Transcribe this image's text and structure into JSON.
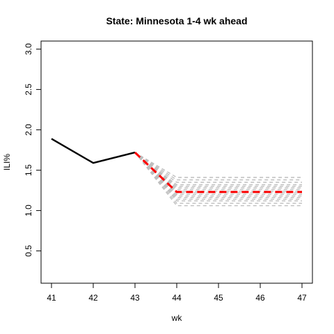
{
  "chart_data": {
    "type": "line",
    "title": "State: Minnesota 1-4 wk ahead",
    "xlabel": "wk",
    "ylabel": "ILI%",
    "xlim": [
      40.75,
      47.25
    ],
    "ylim": [
      0.1,
      3.1
    ],
    "xticks": [
      "41",
      "42",
      "43",
      "44",
      "45",
      "46",
      "47"
    ],
    "yticks": [
      "0.5",
      "1.0",
      "1.5",
      "2.0",
      "2.5",
      "3.0"
    ],
    "colors": {
      "observed": "#000000",
      "forecast": "#ff0000",
      "samples": "#bebebe"
    },
    "observed": {
      "x": [
        41,
        42,
        43
      ],
      "y": [
        1.89,
        1.59,
        1.72
      ]
    },
    "forecast": {
      "x": [
        43,
        44,
        45,
        46,
        47
      ],
      "y": [
        1.72,
        1.23,
        1.23,
        1.23,
        1.23
      ]
    },
    "samples": [
      {
        "x": [
          43,
          44,
          45,
          46,
          47
        ],
        "y": [
          1.72,
          1.41,
          1.41,
          1.41,
          1.41
        ]
      },
      {
        "x": [
          43,
          44,
          45,
          46,
          47
        ],
        "y": [
          1.72,
          1.38,
          1.38,
          1.38,
          1.38
        ]
      },
      {
        "x": [
          43,
          44,
          45,
          46,
          47
        ],
        "y": [
          1.72,
          1.35,
          1.35,
          1.35,
          1.35
        ]
      },
      {
        "x": [
          43,
          44,
          45,
          46,
          47
        ],
        "y": [
          1.72,
          1.32,
          1.32,
          1.32,
          1.32
        ]
      },
      {
        "x": [
          43,
          44,
          45,
          46,
          47
        ],
        "y": [
          1.72,
          1.3,
          1.3,
          1.3,
          1.3
        ]
      },
      {
        "x": [
          43,
          44,
          45,
          46,
          47
        ],
        "y": [
          1.72,
          1.28,
          1.28,
          1.28,
          1.28
        ]
      },
      {
        "x": [
          43,
          44,
          45,
          46,
          47
        ],
        "y": [
          1.72,
          1.26,
          1.26,
          1.26,
          1.26
        ]
      },
      {
        "x": [
          43,
          44,
          45,
          46,
          47
        ],
        "y": [
          1.72,
          1.24,
          1.24,
          1.24,
          1.24
        ]
      },
      {
        "x": [
          43,
          44,
          45,
          46,
          47
        ],
        "y": [
          1.72,
          1.22,
          1.22,
          1.22,
          1.22
        ]
      },
      {
        "x": [
          43,
          44,
          45,
          46,
          47
        ],
        "y": [
          1.72,
          1.2,
          1.2,
          1.2,
          1.2
        ]
      },
      {
        "x": [
          43,
          44,
          45,
          46,
          47
        ],
        "y": [
          1.72,
          1.18,
          1.18,
          1.18,
          1.18
        ]
      },
      {
        "x": [
          43,
          44,
          45,
          46,
          47
        ],
        "y": [
          1.72,
          1.16,
          1.16,
          1.16,
          1.16
        ]
      },
      {
        "x": [
          43,
          44,
          45,
          46,
          47
        ],
        "y": [
          1.72,
          1.14,
          1.14,
          1.14,
          1.14
        ]
      },
      {
        "x": [
          43,
          44,
          45,
          46,
          47
        ],
        "y": [
          1.72,
          1.12,
          1.12,
          1.12,
          1.12
        ]
      },
      {
        "x": [
          43,
          44,
          45,
          46,
          47
        ],
        "y": [
          1.72,
          1.09,
          1.09,
          1.09,
          1.09
        ]
      },
      {
        "x": [
          43,
          44,
          45,
          46,
          47
        ],
        "y": [
          1.72,
          1.06,
          1.06,
          1.06,
          1.06
        ]
      }
    ]
  }
}
